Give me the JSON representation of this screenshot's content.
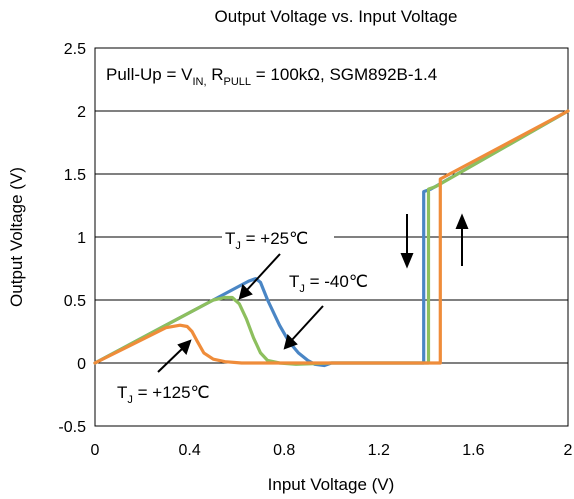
{
  "chart_data": {
    "type": "line",
    "title": "Output Voltage vs. Input Voltage",
    "xlabel": "Input Voltage (V)",
    "ylabel": "Output Voltage (V)",
    "xlim": [
      0,
      2
    ],
    "ylim": [
      -0.5,
      2.5
    ],
    "xticks": [
      0,
      0.4,
      0.8,
      1.2,
      1.6,
      2
    ],
    "xtick_labels": [
      "0",
      "0.4",
      "0.8",
      "1.2",
      "1.6",
      "2"
    ],
    "yticks": [
      -0.5,
      0,
      0.5,
      1,
      1.5,
      2,
      2.5
    ],
    "ytick_labels": [
      "-0.5",
      "0",
      "0.5",
      "1",
      "1.5",
      "2",
      "2.5"
    ],
    "grid": "horizontal",
    "legend": "none",
    "condition_box": {
      "text_prefix": "Pull-Up = V",
      "text_sub1": "IN,",
      "text_mid": " R",
      "text_sub2": "PULL",
      "text_suffix": " = 100kΩ, SGM892B-1.4"
    },
    "annotations": [
      {
        "main": "T",
        "sub": "J",
        "rest": " = +25℃"
      },
      {
        "main": "T",
        "sub": "J",
        "rest": " = -40℃"
      },
      {
        "main": "T",
        "sub": "J",
        "rest": " = +125℃"
      }
    ],
    "series": [
      {
        "color": "#4a86c5",
        "x": [
          0,
          0.3,
          0.5,
          0.6,
          0.65,
          0.68,
          0.7,
          0.73,
          0.78,
          0.82,
          0.86,
          0.9,
          0.93,
          0.97,
          1.0,
          1.39,
          1.39,
          1.42,
          2.0
        ],
        "y": [
          0,
          0.3,
          0.5,
          0.6,
          0.65,
          0.67,
          0.64,
          0.5,
          0.3,
          0.17,
          0.08,
          0.02,
          -0.01,
          -0.02,
          0,
          0,
          1.36,
          1.38,
          2.0
        ]
      },
      {
        "color": "#8dbf5e",
        "x": [
          0,
          0.3,
          0.5,
          0.55,
          0.58,
          0.61,
          0.64,
          0.67,
          0.7,
          0.73,
          0.78,
          0.85,
          1.0,
          1.41,
          1.41,
          1.44,
          2.0
        ],
        "y": [
          0,
          0.3,
          0.5,
          0.52,
          0.52,
          0.47,
          0.35,
          0.2,
          0.08,
          0.02,
          0.0,
          -0.01,
          0,
          0,
          1.38,
          1.4,
          2.0
        ]
      },
      {
        "color": "#ef8c3a",
        "x": [
          0,
          0.3,
          0.36,
          0.39,
          0.41,
          0.43,
          0.46,
          0.5,
          0.55,
          0.62,
          0.7,
          1.0,
          1.46,
          1.46,
          2.0
        ],
        "y": [
          0,
          0.28,
          0.3,
          0.29,
          0.25,
          0.18,
          0.08,
          0.03,
          0.01,
          0.0,
          0.0,
          0,
          0,
          1.46,
          2.0
        ]
      }
    ]
  }
}
